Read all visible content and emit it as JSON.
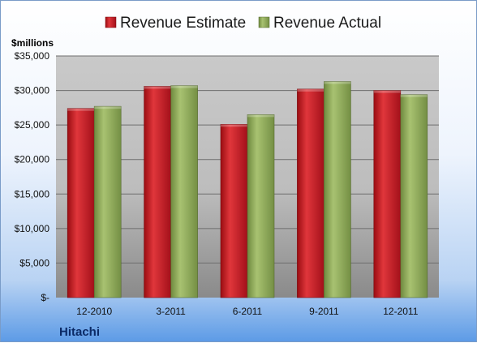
{
  "chart_data": {
    "type": "bar",
    "title": "",
    "unit_label": "$millions",
    "company": "Hitachi",
    "categories": [
      "12-2010",
      "3-2011",
      "6-2011",
      "9-2011",
      "12-2011"
    ],
    "series": [
      {
        "name": "Revenue Estimate",
        "values": [
          27400,
          30600,
          25100,
          30200,
          30000
        ],
        "color": "#c0141a"
      },
      {
        "name": "Revenue Actual",
        "values": [
          27700,
          30700,
          26500,
          31300,
          29400
        ],
        "color": "#8ea95a"
      }
    ],
    "ylim": [
      0,
      35000
    ],
    "y_ticks": [
      0,
      5000,
      10000,
      15000,
      20000,
      25000,
      30000,
      35000
    ],
    "y_tick_labels": [
      "$-",
      "$5,000",
      "$10,000",
      "$15,000",
      "$20,000",
      "$25,000",
      "$30,000",
      "$35,000"
    ],
    "grid": true,
    "legend_position": "top"
  }
}
